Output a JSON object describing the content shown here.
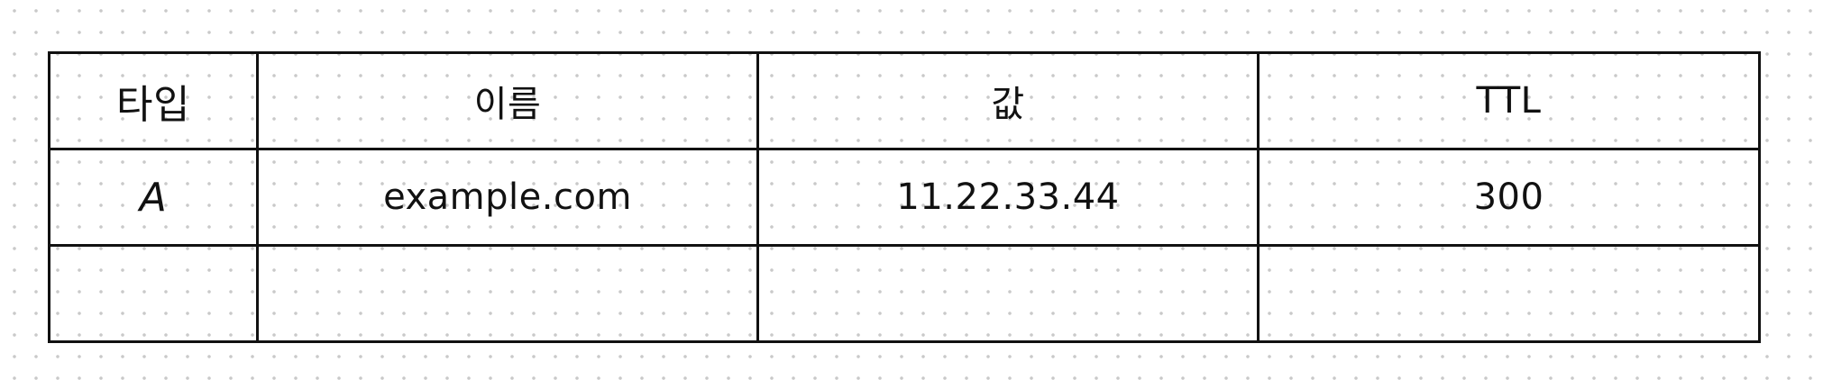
{
  "table": {
    "headers": [
      "타입",
      "이름",
      "값",
      "TTL"
    ],
    "rows": [
      [
        "A",
        "example.com",
        "11.22.33.44",
        "300"
      ],
      [
        "",
        "",
        "",
        ""
      ]
    ]
  },
  "colors": {
    "border": "#111111",
    "background": "#ffffff",
    "dot_grid": "#c9c9c9"
  }
}
